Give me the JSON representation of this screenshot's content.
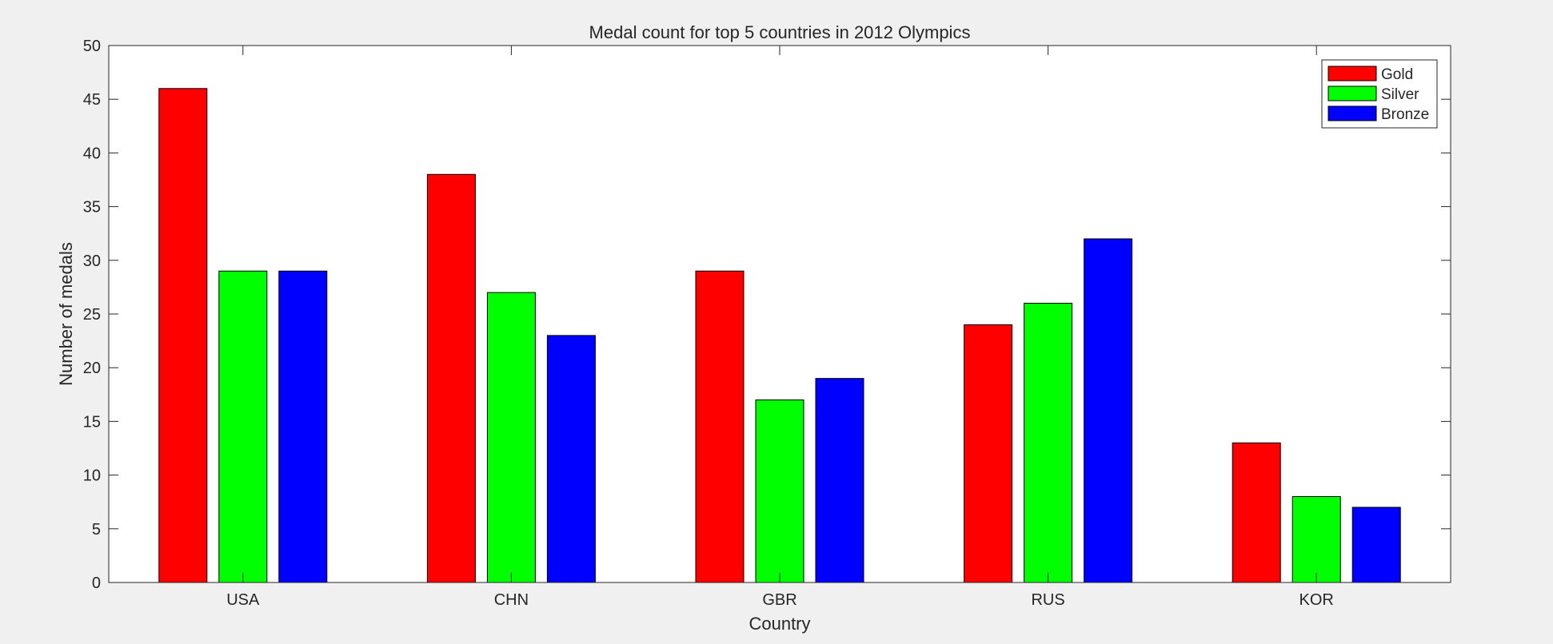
{
  "chart_data": {
    "type": "bar",
    "title": "Medal count for top 5 countries in 2012 Olympics",
    "xlabel": "Country",
    "ylabel": "Number of medals",
    "categories": [
      "USA",
      "CHN",
      "GBR",
      "RUS",
      "KOR"
    ],
    "series": [
      {
        "name": "Gold",
        "color": "#ff0000",
        "values": [
          46,
          38,
          29,
          24,
          13
        ]
      },
      {
        "name": "Silver",
        "color": "#00ff00",
        "values": [
          29,
          27,
          17,
          26,
          8
        ]
      },
      {
        "name": "Bronze",
        "color": "#0000ff",
        "values": [
          29,
          23,
          19,
          32,
          7
        ]
      }
    ],
    "ylim": [
      0,
      50
    ],
    "yticks": [
      0,
      5,
      10,
      15,
      20,
      25,
      30,
      35,
      40,
      45,
      50
    ],
    "grid": false,
    "legend_position": "top-right"
  }
}
